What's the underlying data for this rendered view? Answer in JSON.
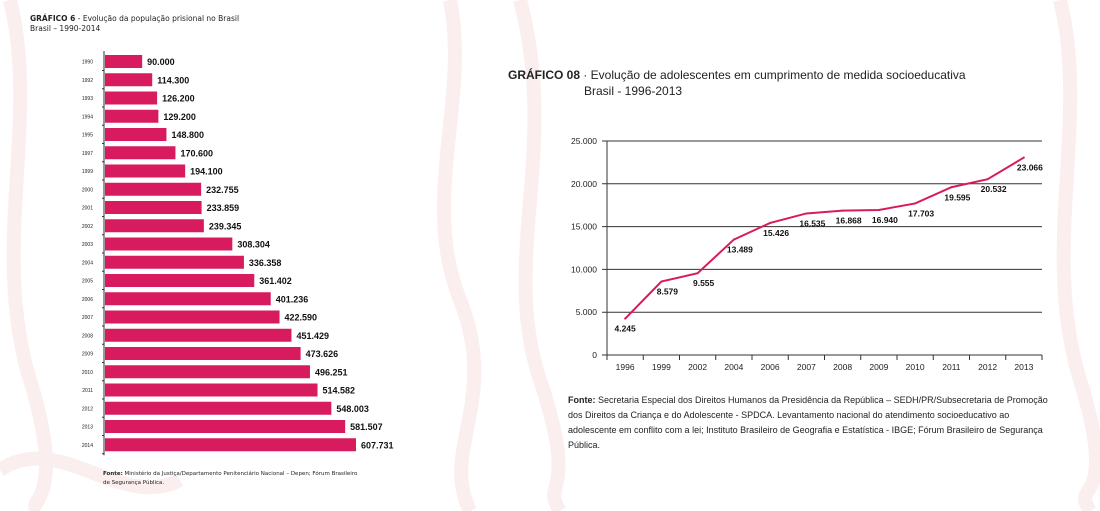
{
  "colors": {
    "bar": "#d81a5e",
    "line": "#d81a5e",
    "grid": "#333333",
    "background_stripes": "#fbeeee"
  },
  "left_chart": {
    "title_bold": "GRÁFICO 6",
    "title_rest": " - Evolução da população prisional no Brasil",
    "subtitle": "Brasil – 1990-2014",
    "source_bold": "Fonte:",
    "source_rest": " Ministério da Justiça/Departamento Penitenciário Nacional – Depen; Fórum Brasileiro de Segurança Pública."
  },
  "right_chart": {
    "title_bold": "GRÁFICO 08",
    "title_rest": " · Evolução de adolescentes em cumprimento de medida socioeducativa",
    "subtitle": "Brasil - 1996-2013",
    "source_bold": "Fonte:",
    "source_rest": " Secretaria Especial dos Direitos Humanos da Presidência da República – SEDH/PR/Subsecretaria de Promoção dos Direitos da Criança e do Adolescente - SPDCA. Levantamento nacional do atendimento socioeducativo ao adolescente em conflito com a lei; Instituto Brasileiro de Geografia e Estatística - IBGE; Fórum Brasileiro de Segurança Pública."
  },
  "chart_data": [
    {
      "type": "bar",
      "orientation": "horizontal",
      "title": "GRÁFICO 6 - Evolução da população prisional no Brasil",
      "subtitle": "Brasil – 1990-2014",
      "categories": [
        "1990",
        "1992",
        "1993",
        "1994",
        "1995",
        "1997",
        "1999",
        "2000",
        "2001",
        "2002",
        "2003",
        "2004",
        "2005",
        "2006",
        "2007",
        "2008",
        "2009",
        "2010",
        "2011",
        "2012",
        "2013",
        "2014"
      ],
      "values": [
        90000,
        114300,
        126200,
        129200,
        148800,
        170600,
        194100,
        232755,
        233859,
        239345,
        308304,
        336358,
        361402,
        401236,
        422590,
        451429,
        473626,
        496251,
        514582,
        548003,
        581507,
        607731
      ],
      "labels": [
        "90.000",
        "114.300",
        "126.200",
        "129.200",
        "148.800",
        "170.600",
        "194.100",
        "232.755",
        "233.859",
        "239.345",
        "308.304",
        "336.358",
        "361.402",
        "401.236",
        "422.590",
        "451.429",
        "473.626",
        "496.251",
        "514.582",
        "548.003",
        "581.507",
        "607.731"
      ],
      "grid": false
    },
    {
      "type": "line",
      "title": "GRÁFICO 08 · Evolução de adolescentes em cumprimento de medida socioeducativa",
      "subtitle": "Brasil - 1996-2013",
      "categories": [
        "1996",
        "1999",
        "2002",
        "2004",
        "2006",
        "2007",
        "2008",
        "2009",
        "2010",
        "2011",
        "2012",
        "2013"
      ],
      "values": [
        4245,
        8579,
        9555,
        13489,
        15426,
        16535,
        16868,
        16940,
        17703,
        19595,
        20532,
        23066
      ],
      "labels": [
        "4.245",
        "8.579",
        "9.555",
        "13.489",
        "15.426",
        "16.535",
        "16.868",
        "16.940",
        "17.703",
        "19.595",
        "20.532",
        "23.066"
      ],
      "ylim": [
        0,
        25000
      ],
      "yticks": [
        0,
        5000,
        10000,
        15000,
        20000,
        25000
      ],
      "ytick_labels": [
        "0",
        "5.000",
        "10.000",
        "15.000",
        "20.000",
        "25.000"
      ],
      "grid": true
    }
  ]
}
